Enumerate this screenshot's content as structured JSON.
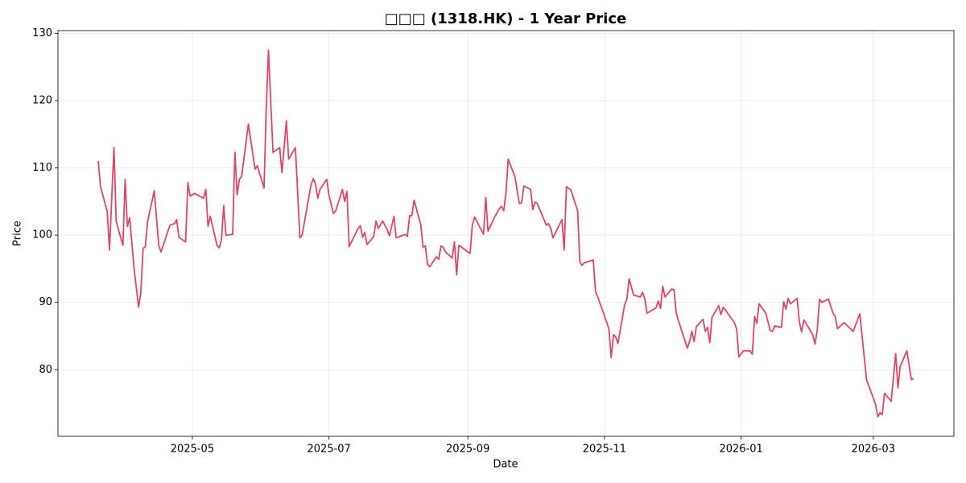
{
  "chart_data": {
    "type": "line",
    "title": "□□□ (1318.HK) - 1 Year Price",
    "x_label": "Date",
    "y_label": "Price",
    "color": "#dc4764",
    "grid": true,
    "xlim": [
      "2025-03-02",
      "2026-04-06"
    ],
    "xticks": [
      {
        "value": "2025-05-01",
        "label": "2025-05"
      },
      {
        "value": "2025-07-01",
        "label": "2025-07"
      },
      {
        "value": "2025-09-01",
        "label": "2025-09"
      },
      {
        "value": "2025-11-01",
        "label": "2025-11"
      },
      {
        "value": "2026-01-01",
        "label": "2026-01"
      },
      {
        "value": "2026-03-01",
        "label": "2026-03"
      }
    ],
    "ylim": [
      70.1,
      130.4
    ],
    "yticks": [
      80,
      90,
      100,
      110,
      120,
      130
    ],
    "x": [
      "2025-03-20",
      "2025-03-21",
      "2025-03-24",
      "2025-03-25",
      "2025-03-27",
      "2025-03-28",
      "2025-03-31",
      "2025-04-01",
      "2025-04-02",
      "2025-04-03",
      "2025-04-05",
      "2025-04-07",
      "2025-04-08",
      "2025-04-09",
      "2025-04-10",
      "2025-04-11",
      "2025-04-14",
      "2025-04-16",
      "2025-04-17",
      "2025-04-21",
      "2025-04-23",
      "2025-04-24",
      "2025-04-25",
      "2025-04-28",
      "2025-04-29",
      "2025-04-30",
      "2025-05-02",
      "2025-05-06",
      "2025-05-07",
      "2025-05-08",
      "2025-05-09",
      "2025-05-12",
      "2025-05-13",
      "2025-05-14",
      "2025-05-15",
      "2025-05-16",
      "2025-05-19",
      "2025-05-20",
      "2025-05-21",
      "2025-05-22",
      "2025-05-23",
      "2025-05-26",
      "2025-05-29",
      "2025-05-30",
      "2025-06-02",
      "2025-06-03",
      "2025-06-04",
      "2025-06-06",
      "2025-06-09",
      "2025-06-10",
      "2025-06-12",
      "2025-06-13",
      "2025-06-16",
      "2025-06-17",
      "2025-06-18",
      "2025-06-19",
      "2025-06-23",
      "2025-06-24",
      "2025-06-25",
      "2025-06-26",
      "2025-06-27",
      "2025-06-30",
      "2025-07-01",
      "2025-07-03",
      "2025-07-04",
      "2025-07-07",
      "2025-07-08",
      "2025-07-09",
      "2025-07-10",
      "2025-07-14",
      "2025-07-15",
      "2025-07-16",
      "2025-07-17",
      "2025-07-18",
      "2025-07-21",
      "2025-07-22",
      "2025-07-23",
      "2025-07-25",
      "2025-07-27",
      "2025-07-28",
      "2025-07-30",
      "2025-07-31",
      "2025-08-04",
      "2025-08-05",
      "2025-08-06",
      "2025-08-07",
      "2025-08-08",
      "2025-08-11",
      "2025-08-12",
      "2025-08-13",
      "2025-08-14",
      "2025-08-15",
      "2025-08-18",
      "2025-08-19",
      "2025-08-20",
      "2025-08-21",
      "2025-08-22",
      "2025-08-25",
      "2025-08-26",
      "2025-08-27",
      "2025-08-28",
      "2025-09-01",
      "2025-09-02",
      "2025-09-03",
      "2025-09-04",
      "2025-09-08",
      "2025-09-09",
      "2025-09-10",
      "2025-09-13",
      "2025-09-15",
      "2025-09-16",
      "2025-09-17",
      "2025-09-18",
      "2025-09-19",
      "2025-09-22",
      "2025-09-24",
      "2025-09-25",
      "2025-09-26",
      "2025-09-29",
      "2025-09-30",
      "2025-10-01",
      "2025-10-02",
      "2025-10-06",
      "2025-10-07",
      "2025-10-08",
      "2025-10-09",
      "2025-10-13",
      "2025-10-14",
      "2025-10-15",
      "2025-10-17",
      "2025-10-20",
      "2025-10-21",
      "2025-10-22",
      "2025-10-23",
      "2025-10-27",
      "2025-10-28",
      "2025-10-29",
      "2025-11-01",
      "2025-11-03",
      "2025-11-04",
      "2025-11-05",
      "2025-11-06",
      "2025-11-07",
      "2025-11-10",
      "2025-11-11",
      "2025-11-12",
      "2025-11-14",
      "2025-11-17",
      "2025-11-18",
      "2025-11-19",
      "2025-11-20",
      "2025-11-24",
      "2025-11-25",
      "2025-11-26",
      "2025-11-27",
      "2025-11-28",
      "2025-12-01",
      "2025-12-02",
      "2025-12-03",
      "2025-12-04",
      "2025-12-08",
      "2025-12-09",
      "2025-12-10",
      "2025-12-11",
      "2025-12-12",
      "2025-12-15",
      "2025-12-16",
      "2025-12-17",
      "2025-12-18",
      "2025-12-19",
      "2025-12-22",
      "2025-12-23",
      "2025-12-24",
      "2025-12-29",
      "2025-12-30",
      "2025-12-31",
      "2026-01-02",
      "2026-01-05",
      "2026-01-06",
      "2026-01-07",
      "2026-01-08",
      "2026-01-09",
      "2026-01-12",
      "2026-01-14",
      "2026-01-15",
      "2026-01-16",
      "2026-01-19",
      "2026-01-20",
      "2026-01-21",
      "2026-01-22",
      "2026-01-23",
      "2026-01-26",
      "2026-01-27",
      "2026-01-28",
      "2026-01-29",
      "2026-02-02",
      "2026-02-03",
      "2026-02-04",
      "2026-02-05",
      "2026-02-06",
      "2026-02-09",
      "2026-02-11",
      "2026-02-12",
      "2026-02-13",
      "2026-02-16",
      "2026-02-20",
      "2026-02-23",
      "2026-02-24",
      "2026-02-26",
      "2026-03-02",
      "2026-03-03",
      "2026-03-04",
      "2026-03-05",
      "2026-03-06",
      "2026-03-09",
      "2026-03-11",
      "2026-03-12",
      "2026-03-13",
      "2026-03-16",
      "2026-03-18",
      "2026-03-19"
    ],
    "values": [
      111,
      107.2,
      103.5,
      97.8,
      113,
      102,
      98.5,
      108.3,
      101.3,
      102.6,
      95,
      89.3,
      91.5,
      98,
      98.3,
      102,
      106.6,
      98.5,
      97.5,
      101.5,
      101.7,
      102.3,
      99.7,
      99,
      107.8,
      105.8,
      106.2,
      105.5,
      106.8,
      101.3,
      102.8,
      98.5,
      98.1,
      99.3,
      104.4,
      100,
      100.1,
      112.3,
      106,
      108.3,
      108.7,
      116.5,
      109.8,
      110.3,
      107,
      119,
      127.5,
      112.3,
      113,
      109.3,
      117,
      111.3,
      113,
      106.4,
      99.6,
      100,
      107.5,
      108.4,
      107.6,
      105.5,
      106.8,
      108.3,
      105.9,
      103.2,
      103.6,
      106.8,
      105,
      106.5,
      98.3,
      101,
      101.4,
      99.7,
      100.4,
      98.6,
      99.8,
      102.1,
      101,
      102.1,
      100.8,
      99.9,
      102.8,
      99.6,
      100.1,
      99.8,
      102.9,
      102.9,
      105.2,
      101.5,
      98.2,
      98.4,
      95.7,
      95.3,
      96.8,
      96.4,
      98.4,
      98.2,
      97.5,
      96.6,
      99,
      94.1,
      98.5,
      97.5,
      97.3,
      101.5,
      102.7,
      100.1,
      105.6,
      100.6,
      102.7,
      103.9,
      104.3,
      103.6,
      106.2,
      111.3,
      108.7,
      104.7,
      104.8,
      107.3,
      106.8,
      103.8,
      104.9,
      104.7,
      101.5,
      101.7,
      101,
      99.6,
      102.3,
      97.8,
      107.2,
      106.7,
      103.6,
      96,
      95.5,
      95.9,
      96.3,
      91.6,
      90.8,
      88,
      86,
      81.8,
      85.2,
      84.9,
      83.9,
      89.7,
      90.5,
      93.5,
      91.1,
      90.8,
      91.5,
      90.5,
      88.4,
      89.2,
      90.2,
      89.1,
      92.4,
      90.8,
      92,
      91.9,
      88.5,
      87.3,
      83.2,
      84.2,
      85.7,
      84.2,
      86.4,
      87.5,
      85.7,
      86.3,
      84,
      87.8,
      89.5,
      88.2,
      89.3,
      87,
      86,
      81.9,
      82.8,
      82.8,
      82.3,
      87.9,
      86.9,
      89.8,
      88.4,
      85.8,
      85.7,
      86.5,
      86.3,
      90.1,
      89,
      90.6,
      89.8,
      90.6,
      87.1,
      85.6,
      87.4,
      85.2,
      83.8,
      86,
      90.5,
      90,
      90.5,
      88.4,
      87.9,
      86.1,
      87,
      85.7,
      88.3,
      85,
      78.5,
      74.9,
      73,
      73.6,
      73.3,
      76.5,
      75.3,
      82.4,
      77.3,
      80.5,
      82.8,
      78.5,
      78.7
    ]
  }
}
